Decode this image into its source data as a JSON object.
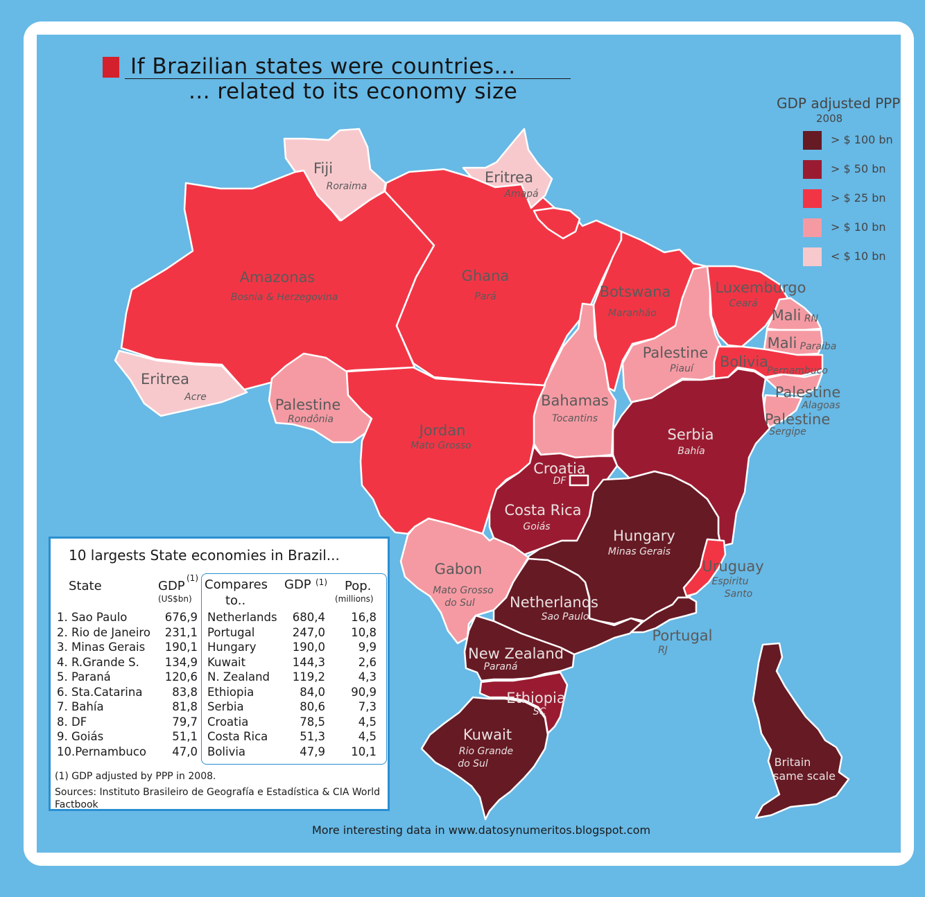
{
  "title": {
    "line1": "If Brazilian states were countries...",
    "line2": "... related to its economy size"
  },
  "colors": {
    "gt100": "#661a24",
    "gt50": "#9a1b31",
    "gt25": "#f23545",
    "gt10": "#f59aa3",
    "lt10": "#f7c9cd",
    "title_square": "#d3202c",
    "table_border": "#2a8fd1",
    "background": "#67b9e6"
  },
  "legend": {
    "title": "GDP adjusted PPP",
    "year": "2008",
    "items": [
      {
        "label": "> $ 100 bn",
        "color": "#661a24"
      },
      {
        "label": "> $ 50 bn",
        "color": "#9a1b31"
      },
      {
        "label": "> $ 25 bn",
        "color": "#f23545"
      },
      {
        "label": "> $ 10 bn",
        "color": "#f59aa3"
      },
      {
        "label": "< $ 10 bn",
        "color": "#f7c9cd"
      }
    ]
  },
  "map_labels": {
    "roraima": {
      "country": "Fiji",
      "state": "Roraima"
    },
    "amapa": {
      "country": "Eritrea",
      "state": "Amapá"
    },
    "amazonas": {
      "country": "Amazonas",
      "state": "Bosnia & Herzegovina"
    },
    "para": {
      "country": "Ghana",
      "state": "Pará"
    },
    "maranhao": {
      "country": "Botswana",
      "state": "Maranhão"
    },
    "ceara": {
      "country": "Luxemburgo",
      "state": "Ceará"
    },
    "rn": {
      "country": "Mali",
      "state": "RN"
    },
    "paraiba": {
      "country": "Mali",
      "state": "Paraiba"
    },
    "piaui": {
      "country": "Palestine",
      "state": "Piauí"
    },
    "pernambuco": {
      "country": "Bolivia",
      "state": "Pernambuco"
    },
    "alagoas": {
      "country": "Palestine",
      "state": "Alagoas"
    },
    "sergipe": {
      "country": "Palestine",
      "state": "Sergipe"
    },
    "acre": {
      "country": "Eritrea",
      "state": "Acre"
    },
    "rondonia": {
      "country": "Palestine",
      "state": "Rondônia"
    },
    "mato_grosso": {
      "country": "Jordan",
      "state": "Mato Grosso"
    },
    "tocantins": {
      "country": "Bahamas",
      "state": "Tocantins"
    },
    "bahia": {
      "country": "Serbia",
      "state": "Bahía"
    },
    "df": {
      "country": "Croatia",
      "state": "DF"
    },
    "goias": {
      "country": "Costa Rica",
      "state": "Goiás"
    },
    "minas": {
      "country": "Hungary",
      "state": "Minas Gerais"
    },
    "espirito_santo": {
      "country": "Uruguay",
      "state_line1": "Espiritu",
      "state_line2": "Santo"
    },
    "ms": {
      "country": "Gabon",
      "state_line1": "Mato Grosso",
      "state_line2": "do Sul"
    },
    "sao_paulo": {
      "country": "Netherlands",
      "state": "Sao Paulo"
    },
    "rj": {
      "country": "Portugal",
      "state": "RJ"
    },
    "parana": {
      "country": "New Zealand",
      "state": "Paraná"
    },
    "sc": {
      "country": "Ethiopia",
      "state": "SC"
    },
    "rs": {
      "country": "Kuwait",
      "state_line1": "Rio Grande",
      "state_line2": "do Sul"
    },
    "britain": {
      "line1": "Britain",
      "line2": "same scale"
    }
  },
  "table": {
    "title": "10 largests State economies in Brazil...",
    "headers": {
      "state": "State",
      "gdp": "GDP",
      "gdp_sup": "(1)",
      "gdp_unit": "(US$bn)",
      "compares_line1": "Compares",
      "compares_line2": "to..",
      "gdp2": "GDP",
      "gdp2_sup": "(1)",
      "pop": "Pop.",
      "pop_unit": "(millions)"
    },
    "rows": [
      {
        "state": "1. Sao Paulo",
        "gdp": "676,9",
        "country": "Netherlands",
        "country_gdp": "680,4",
        "pop": "16,8"
      },
      {
        "state": "2. Rio de Janeiro",
        "gdp": "231,1",
        "country": "Portugal",
        "country_gdp": "247,0",
        "pop": "10,8"
      },
      {
        "state": "3. Minas Gerais",
        "gdp": "190,1",
        "country": "Hungary",
        "country_gdp": "190,0",
        "pop": "9,9"
      },
      {
        "state": "4. R.Grande S.",
        "gdp": "134,9",
        "country": "Kuwait",
        "country_gdp": "144,3",
        "pop": "2,6"
      },
      {
        "state": "5. Paraná",
        "gdp": "120,6",
        "country": "N. Zealand",
        "country_gdp": "119,2",
        "pop": "4,3"
      },
      {
        "state": "6. Sta.Catarina",
        "gdp": "83,8",
        "country": "Ethiopia",
        "country_gdp": "84,0",
        "pop": "90,9"
      },
      {
        "state": "7. Bahía",
        "gdp": "81,8",
        "country": "Serbia",
        "country_gdp": "80,6",
        "pop": "7,3"
      },
      {
        "state": "8. DF",
        "gdp": "79,7",
        "country": "Croatia",
        "country_gdp": "78,5",
        "pop": "4,5"
      },
      {
        "state": "9. Goiás",
        "gdp": "51,1",
        "country": "Costa Rica",
        "country_gdp": "51,3",
        "pop": "4,5"
      },
      {
        "state": "10.Pernambuco",
        "gdp": "47,0",
        "country": "Bolivia",
        "country_gdp": "47,9",
        "pop": "10,1"
      }
    ],
    "note": "(1) GDP adjusted by PPP in 2008.",
    "sources": "Sources: Instituto Brasileiro de Geografía e Estadística & CIA World Factbook"
  },
  "footer": "More interesting data in www.datosynumeritos.blogspot.com"
}
